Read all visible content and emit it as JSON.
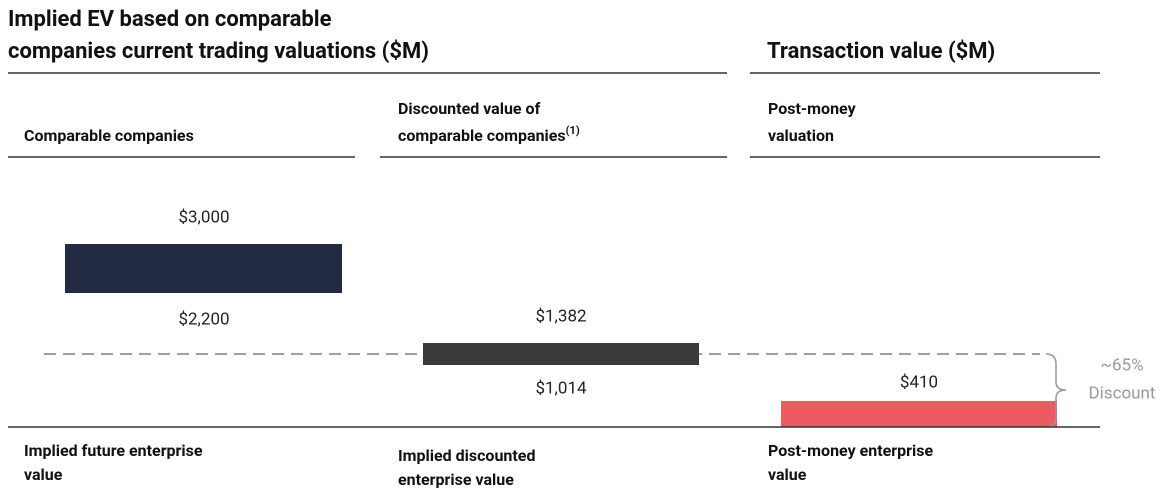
{
  "header": {
    "left_title": [
      "Implied EV based on comparable",
      "companies current trading valuations ($M)"
    ],
    "right_title": "Transaction value ($M)"
  },
  "columns": [
    {
      "header": [
        "Comparable companies"
      ],
      "top_label": "$3,000",
      "bottom_label": "$2,200",
      "footer": [
        "Implied future enterprise",
        "value"
      ]
    },
    {
      "header": [
        "Discounted value of",
        "comparable companies"
      ],
      "header_note": "(1)",
      "top_label": "$1,382",
      "bottom_label": "$1,014",
      "footer": [
        "Implied discounted",
        "enterprise value"
      ]
    },
    {
      "header": [
        "Post-money",
        "valuation"
      ],
      "top_label": "$410",
      "footer": [
        "Post-money enterprise",
        "value"
      ]
    }
  ],
  "annotation": [
    "~65%",
    "Discount"
  ]
}
